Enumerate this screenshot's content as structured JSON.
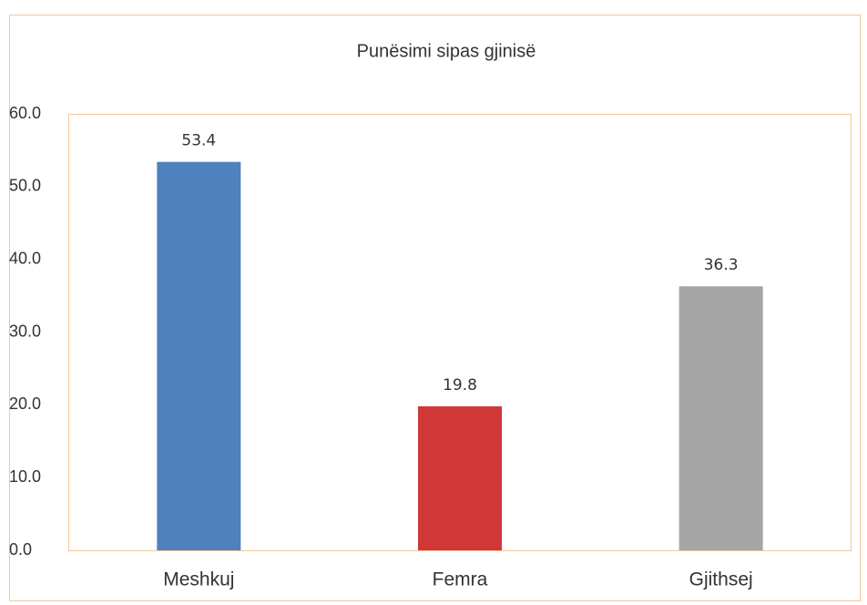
{
  "chart_data": {
    "type": "bar",
    "title": "Punësimi sipas gjinisë",
    "categories": [
      "Meshkuj",
      "Femra",
      "Gjithsej"
    ],
    "values": [
      53.4,
      19.8,
      36.3
    ],
    "colors": [
      "#4f81bd",
      "#d03737",
      "#a5a5a5"
    ],
    "ylim": [
      0,
      60
    ],
    "yticks": [
      {
        "value": 0,
        "label": "0.0"
      },
      {
        "value": 10,
        "label": "10.0"
      },
      {
        "value": 20,
        "label": "20.0"
      },
      {
        "value": 30,
        "label": "30.0"
      },
      {
        "value": 40,
        "label": "40.0"
      },
      {
        "value": 50,
        "label": "50.0"
      },
      {
        "value": 60,
        "label": "60.0"
      }
    ],
    "grid": false
  }
}
